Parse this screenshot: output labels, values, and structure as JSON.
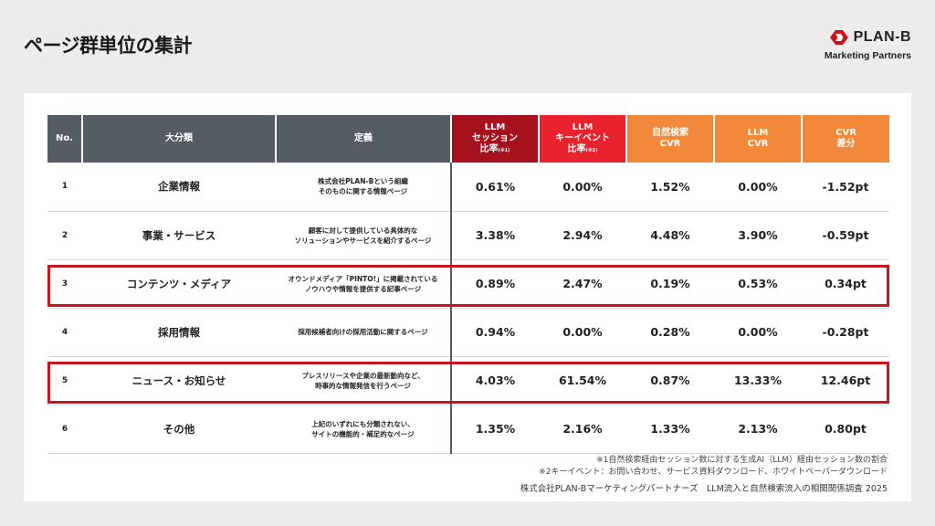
{
  "page_title": "ページ群単位の集計",
  "logo": {
    "name": "PLAN-B",
    "sub": "Marketing Partners"
  },
  "table": {
    "headers": [
      {
        "label": "No.",
        "style": "dark"
      },
      {
        "label": "大分類",
        "style": "dark"
      },
      {
        "label": "定義",
        "style": "dark"
      },
      {
        "label": "LLM\nセッション\n比率",
        "sup": "(※1)",
        "style": "red1"
      },
      {
        "label": "LLM\nキーイベント\n比率",
        "sup": "(※2)",
        "style": "red2"
      },
      {
        "label": "自然検索\nCVR",
        "style": "orange"
      },
      {
        "label": "LLM\nCVR",
        "style": "orange"
      },
      {
        "label": "CVR\n差分",
        "style": "orange"
      }
    ],
    "rows": [
      {
        "no": "1",
        "category": "企業情報",
        "definition": "株式会社PLAN-Bという組織\nそのものに関する情報ページ",
        "llm_session": "0.61%",
        "llm_key_event": "0.00%",
        "organic_cvr": "1.52%",
        "llm_cvr": "0.00%",
        "cvr_diff": "-1.52pt",
        "highlight": false
      },
      {
        "no": "2",
        "category": "事業・サービス",
        "definition": "顧客に対して提供している具体的な\nソリューションやサービスを紹介するページ",
        "llm_session": "3.38%",
        "llm_key_event": "2.94%",
        "organic_cvr": "4.48%",
        "llm_cvr": "3.90%",
        "cvr_diff": "-0.59pt",
        "highlight": false
      },
      {
        "no": "3",
        "category": "コンテンツ・メディア",
        "definition": "オウンドメディア「PINTO!」に掲載されている\nノウハウや情報を提供する記事ページ",
        "llm_session": "0.89%",
        "llm_key_event": "2.47%",
        "organic_cvr": "0.19%",
        "llm_cvr": "0.53%",
        "cvr_diff": "0.34pt",
        "highlight": true
      },
      {
        "no": "4",
        "category": "採用情報",
        "definition": "採用候補者向けの採用活動に関するページ",
        "llm_session": "0.94%",
        "llm_key_event": "0.00%",
        "organic_cvr": "0.28%",
        "llm_cvr": "0.00%",
        "cvr_diff": "-0.28pt",
        "highlight": false
      },
      {
        "no": "5",
        "category": "ニュース・お知らせ",
        "definition": "プレスリリースや企業の最新動向など、\n時事的な情報発信を行うページ",
        "llm_session": "4.03%",
        "llm_key_event": "61.54%",
        "organic_cvr": "0.87%",
        "llm_cvr": "13.33%",
        "cvr_diff": "12.46pt",
        "highlight": true
      },
      {
        "no": "6",
        "category": "その他",
        "definition": "上記のいずれにも分類されない、\nサイトの機能的・補足的なページ",
        "llm_session": "1.35%",
        "llm_key_event": "2.16%",
        "organic_cvr": "1.33%",
        "llm_cvr": "2.13%",
        "cvr_diff": "0.80pt",
        "highlight": false
      }
    ]
  },
  "notes": [
    "※1自然検索経由セッション数に対する生成AI（LLM）経由セッション数の割合",
    "※2キーイベント：お問い合わせ、サービス資料ダウンロード、ホワイトペーパーダウンロード"
  ],
  "footer": "株式会社PLAN-Bマーケティングパートナーズ　LLM流入と自然検索流入の相関関係調査 2025",
  "colors": {
    "dark": "#555c63",
    "red1": "#a5111c",
    "red2": "#e8232d",
    "orange": "#f2883a",
    "highlight_border": "#c8141e",
    "logo_red": "#c8141e"
  }
}
